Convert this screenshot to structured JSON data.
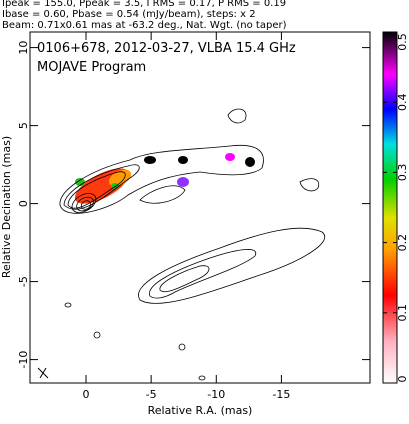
{
  "chart_data": {
    "type": "contour",
    "header": [
      "Ipeak = 155.0, Ppeak = 3.5, I RMS = 0.17, P RMS = 0.19",
      "Ibase = 0.60, Pbase = 0.54 (mJy/beam), steps: x 2",
      "Beam: 0.71x0.61 mas at -63.2 deg., Nat. Wgt. (no taper)"
    ],
    "title": "0106+678, 2012-03-27, VLBA 15.4 GHz",
    "subtitle": "MOJAVE Program",
    "x_label": "Relative R.A. (mas)",
    "y_label": "Relative Decination (mas)",
    "xlim": [
      4.3,
      -21.8
    ],
    "xticks": [
      0,
      -5,
      -10,
      -15
    ],
    "ylim": [
      -11.5,
      11
    ],
    "yticks": [
      -10,
      -5,
      0,
      5,
      10
    ],
    "clim": [
      0,
      0.5
    ],
    "cticks": [
      0,
      0.1,
      0.2,
      0.3,
      0.4,
      0.5
    ]
  }
}
